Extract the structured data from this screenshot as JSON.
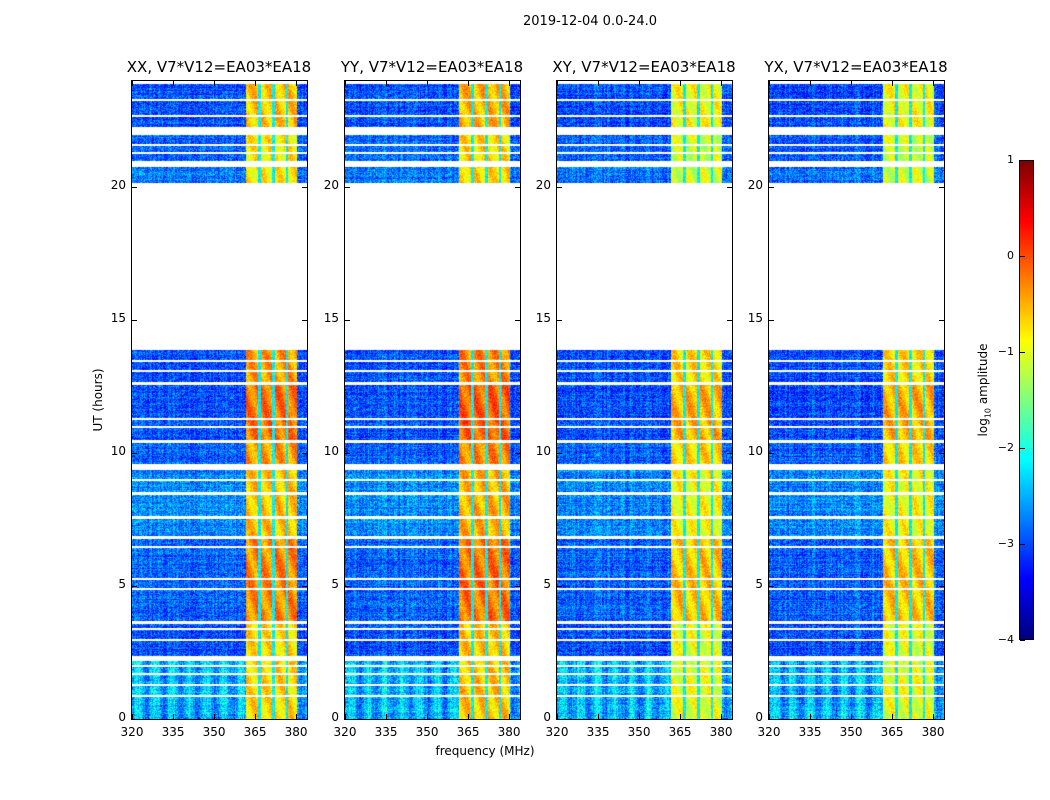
{
  "figure": {
    "suptitle": "2019-12-04 0.0-24.0",
    "xlabel": "frequency (MHz)",
    "ylabel": "UT (hours)"
  },
  "chart_data": {
    "type": "heatmap",
    "title": "2019-12-04 0.0-24.0",
    "xlabel": "frequency (MHz)",
    "ylabel": "UT (hours)",
    "xlim": [
      320,
      384
    ],
    "ylim": [
      0,
      24
    ],
    "xticks": [
      "320",
      "335",
      "350",
      "365",
      "380"
    ],
    "xtick_values": [
      320,
      335,
      350,
      365,
      380
    ],
    "yticks": [
      "0",
      "5",
      "10",
      "15",
      "20"
    ],
    "ytick_values": [
      0,
      5,
      10,
      15,
      20
    ],
    "panels": [
      {
        "title": "XX, V7*V12=EA03*EA18",
        "band_offset": 0.2
      },
      {
        "title": "YY, V7*V12=EA03*EA18",
        "band_offset": 0.3
      },
      {
        "title": "XY, V7*V12=EA03*EA18",
        "band_offset": -0.1
      },
      {
        "title": "YX, V7*V12=EA03*EA18",
        "band_offset": -0.1
      }
    ],
    "rfi_band_mhz": [
      361.5,
      380
    ],
    "band_notches_mhz": [
      366.5,
      371.5,
      376.5
    ],
    "time_blocks_hours": [
      {
        "start": 0.0,
        "end": 2.2,
        "background": -2.5,
        "band": -0.9
      },
      {
        "start": 2.4,
        "end": 3.6,
        "background": -3.0,
        "band": -0.9
      },
      {
        "start": 3.7,
        "end": 6.8,
        "background": -2.9,
        "band": -0.5
      },
      {
        "start": 6.9,
        "end": 9.4,
        "background": -2.7,
        "band": -0.8
      },
      {
        "start": 9.6,
        "end": 10.4,
        "background": -2.9,
        "band": -0.6
      },
      {
        "start": 10.5,
        "end": 12.6,
        "background": -3.0,
        "band": -0.4
      },
      {
        "start": 12.7,
        "end": 13.9,
        "background": -3.0,
        "band": -0.6
      },
      {
        "start": 20.2,
        "end": 20.8,
        "background": -2.8,
        "band": -1.0
      },
      {
        "start": 21.0,
        "end": 22.0,
        "background": -2.9,
        "band": -1.0
      },
      {
        "start": 22.3,
        "end": 23.9,
        "background": -3.0,
        "band": -0.8
      }
    ],
    "flagged_lines_hours": [
      0.9,
      1.3,
      1.7,
      2.0,
      3.0,
      3.4,
      4.9,
      5.3,
      6.5,
      7.6,
      8.5,
      9.0,
      11.0,
      11.3,
      13.1,
      13.5,
      21.3,
      21.6,
      22.7,
      23.3
    ],
    "colorbar": {
      "label": "log10 amplitude",
      "label_main": "log",
      "label_sub": "10",
      "label_rest": " amplitude",
      "range": [
        -4,
        1
      ],
      "ticks": [
        "−4",
        "−3",
        "−2",
        "−1",
        "0",
        "1"
      ],
      "tick_values": [
        -4,
        -3,
        -2,
        -1,
        0,
        1
      ],
      "colormap": "jet"
    }
  }
}
